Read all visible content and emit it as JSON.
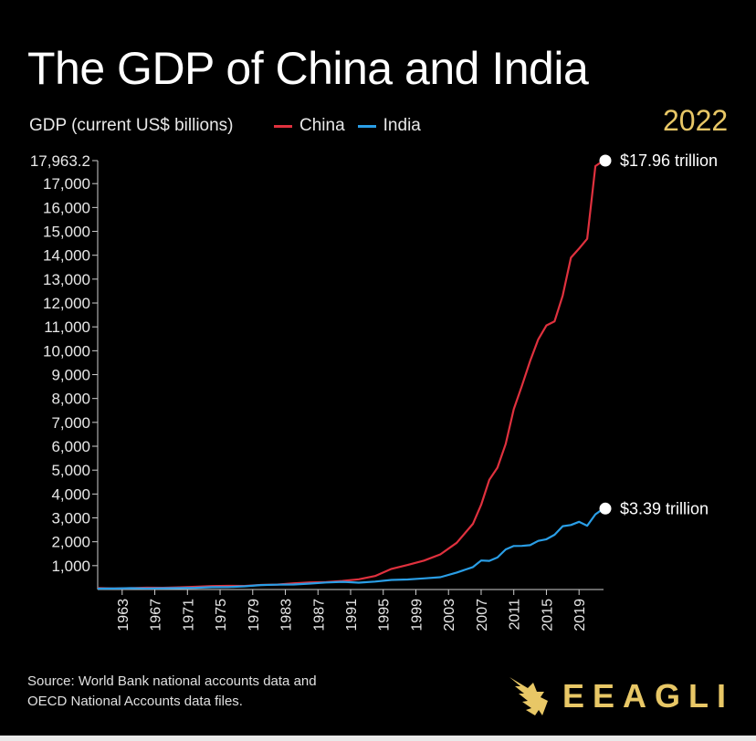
{
  "title": "The GDP of China and India",
  "year_label": "2022",
  "source_line1": "Source: World Bank national accounts data and",
  "source_line2": "OECD National Accounts data files.",
  "logo_text": "EEAGLI",
  "colors": {
    "china": "#e0313e",
    "india": "#2a9ee6",
    "accent": "#e8c766",
    "background": "#000000"
  },
  "chart_data": {
    "type": "line",
    "title": "The GDP of China and India",
    "ylabel": "GDP (current US$ billions)",
    "xlabel": "",
    "ylim": [
      0,
      17963.2
    ],
    "xlim": [
      1960,
      2022
    ],
    "y_ticks": [
      1000,
      2000,
      3000,
      4000,
      5000,
      6000,
      7000,
      8000,
      9000,
      10000,
      11000,
      12000,
      13000,
      14000,
      15000,
      16000,
      17000,
      17963.2
    ],
    "y_tick_labels": [
      "1,000",
      "2,000",
      "3,000",
      "4,000",
      "5,000",
      "6,000",
      "7,000",
      "8,000",
      "9,000",
      "10,000",
      "11,000",
      "12,000",
      "13,000",
      "14,000",
      "15,000",
      "16,000",
      "17,000",
      "17,963.2"
    ],
    "x_ticks": [
      1963,
      1967,
      1971,
      1975,
      1979,
      1983,
      1987,
      1991,
      1995,
      1999,
      2003,
      2007,
      2011,
      2015,
      2019
    ],
    "x_tick_labels": [
      "1963",
      "1967",
      "1971",
      "1975",
      "1979",
      "1983",
      "1987",
      "1991",
      "1995",
      "1999",
      "2003",
      "2007",
      "2011",
      "2015",
      "2019"
    ],
    "legend": "top",
    "grid": false,
    "annotations": [
      {
        "series": "China",
        "x": 2022,
        "y": 17963.2,
        "text": "$17.96 trillion"
      },
      {
        "series": "India",
        "x": 2022,
        "y": 3390,
        "text": "$3.39 trillion"
      }
    ],
    "series": [
      {
        "name": "China",
        "color": "#e0313e",
        "x": [
          1960,
          1962,
          1964,
          1966,
          1968,
          1970,
          1972,
          1974,
          1976,
          1978,
          1980,
          1982,
          1984,
          1986,
          1988,
          1990,
          1992,
          1994,
          1996,
          1998,
          2000,
          2002,
          2004,
          2006,
          2007,
          2008,
          2009,
          2010,
          2011,
          2012,
          2013,
          2014,
          2015,
          2016,
          2017,
          2018,
          2019,
          2020,
          2021,
          2022
        ],
        "y": [
          60,
          47,
          59,
          77,
          71,
          93,
          114,
          144,
          154,
          150,
          191,
          205,
          260,
          300,
          312,
          361,
          427,
          564,
          864,
          1029,
          1211,
          1471,
          1956,
          2752,
          3550,
          4594,
          5102,
          6087,
          7552,
          8532,
          9570,
          10476,
          11062,
          11233,
          12310,
          13895,
          14280,
          14688,
          17734,
          17963
        ]
      },
      {
        "name": "India",
        "color": "#2a9ee6",
        "x": [
          1960,
          1962,
          1964,
          1966,
          1968,
          1970,
          1972,
          1974,
          1976,
          1978,
          1980,
          1982,
          1984,
          1986,
          1988,
          1990,
          1992,
          1994,
          1996,
          1998,
          2000,
          2002,
          2004,
          2006,
          2007,
          2008,
          2009,
          2010,
          2011,
          2012,
          2013,
          2014,
          2015,
          2016,
          2017,
          2018,
          2019,
          2020,
          2021,
          2022
        ],
        "y": [
          37,
          42,
          56,
          46,
          52,
          62,
          71,
          99,
          102,
          135,
          186,
          201,
          210,
          249,
          296,
          321,
          288,
          333,
          400,
          421,
          468,
          515,
          709,
          940,
          1217,
          1199,
          1342,
          1676,
          1823,
          1828,
          1857,
          2039,
          2104,
          2295,
          2651,
          2702,
          2836,
          2672,
          3150,
          3390
        ]
      }
    ]
  }
}
